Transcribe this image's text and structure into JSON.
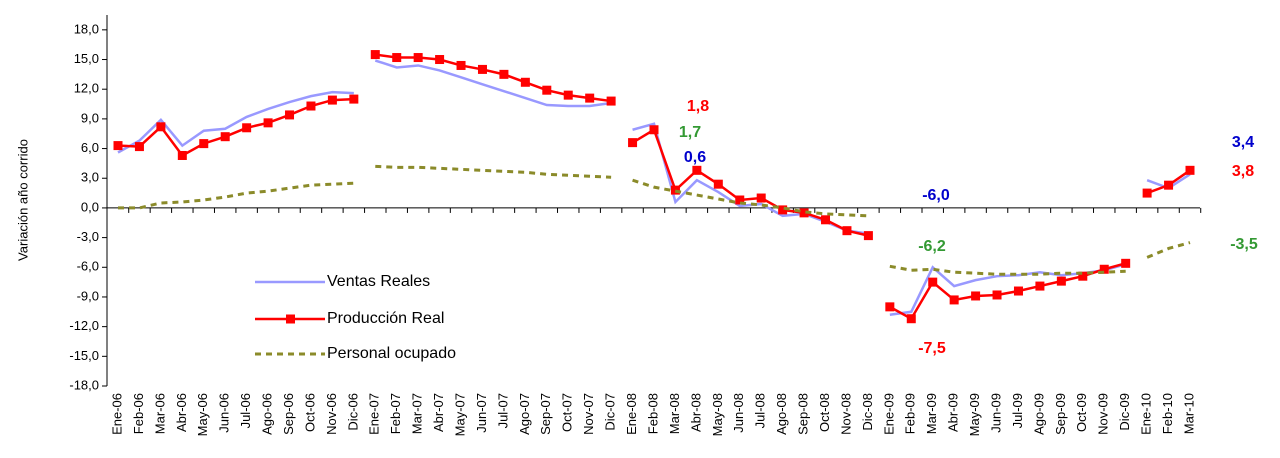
{
  "chart_data": {
    "type": "line",
    "y_axis_label": "Variación año corrido",
    "categories": [
      "Ene-06",
      "Feb-06",
      "Mar-06",
      "Abr-06",
      "May-06",
      "Jun-06",
      "Jul-06",
      "Ago-06",
      "Sep-06",
      "Oct-06",
      "Nov-06",
      "Dic-06",
      "Ene-07",
      "Feb-07",
      "Mar-07",
      "Abr-07",
      "May-07",
      "Jun-07",
      "Jul-07",
      "Ago-07",
      "Sep-07",
      "Oct-07",
      "Nov-07",
      "Dic-07",
      "Ene-08",
      "Feb-08",
      "Mar-08",
      "Abr-08",
      "May-08",
      "Jun-08",
      "Jul-08",
      "Ago-08",
      "Sep-08",
      "Oct-08",
      "Nov-08",
      "Dic-08",
      "Ene-09",
      "Feb-09",
      "Mar-09",
      "Abr-09",
      "May-09",
      "Jun-09",
      "Jul-09",
      "Ago-09",
      "Sep-09",
      "Oct-09",
      "Nov-09",
      "Dic-09",
      "Ene-10",
      "Feb-10",
      "Mar-10"
    ],
    "series": [
      {
        "name": "Ventas Reales",
        "color": "#9999ff",
        "style": "solid",
        "values": [
          5.6,
          6.8,
          8.9,
          6.3,
          7.8,
          8.0,
          9.2,
          10.0,
          10.7,
          11.3,
          11.7,
          11.6,
          14.9,
          14.2,
          14.4,
          13.9,
          13.2,
          12.5,
          11.8,
          11.1,
          10.4,
          10.3,
          10.3,
          10.6,
          7.9,
          8.5,
          0.6,
          2.8,
          1.6,
          0.2,
          0.4,
          -0.8,
          -0.6,
          -1.4,
          -2.3,
          -2.6,
          -10.8,
          -10.5,
          -6.0,
          -7.9,
          -7.3,
          -6.9,
          -6.8,
          -6.5,
          -6.8,
          -6.6,
          -6.3,
          -5.7,
          2.8,
          2.0,
          3.4
        ]
      },
      {
        "name": "Producción Real",
        "color": "#ff0000",
        "style": "solid",
        "marker": "square",
        "values": [
          6.3,
          6.2,
          8.2,
          5.3,
          6.5,
          7.2,
          8.1,
          8.6,
          9.4,
          10.3,
          10.9,
          11.0,
          15.5,
          15.2,
          15.2,
          15.0,
          14.4,
          14.0,
          13.5,
          12.7,
          11.9,
          11.4,
          11.1,
          10.8,
          6.6,
          7.9,
          1.8,
          3.8,
          2.4,
          0.8,
          1.0,
          -0.2,
          -0.5,
          -1.2,
          -2.3,
          -2.8,
          -10.0,
          -11.2,
          -7.5,
          -9.3,
          -8.9,
          -8.8,
          -8.4,
          -7.9,
          -7.4,
          -6.9,
          -6.2,
          -5.6,
          1.5,
          2.3,
          3.8
        ]
      },
      {
        "name": "Personal ocupado",
        "color": "#8b8b2a",
        "style": "dashed",
        "values": [
          0.0,
          0.0,
          0.5,
          0.6,
          0.8,
          1.1,
          1.5,
          1.7,
          2.0,
          2.3,
          2.4,
          2.5,
          4.2,
          4.1,
          4.1,
          4.0,
          3.9,
          3.8,
          3.7,
          3.6,
          3.4,
          3.3,
          3.2,
          3.1,
          2.8,
          2.1,
          1.7,
          1.3,
          0.9,
          0.5,
          0.3,
          0.0,
          -0.4,
          -0.6,
          -0.7,
          -0.8,
          -5.9,
          -6.3,
          -6.2,
          -6.5,
          -6.6,
          -6.7,
          -6.7,
          -6.7,
          -6.6,
          -6.6,
          -6.5,
          -6.4,
          -5.0,
          -4.1,
          -3.5
        ]
      }
    ],
    "annotations": [
      {
        "text": "1,8",
        "color": "#ff0000"
      },
      {
        "text": "1,7",
        "color": "#339933"
      },
      {
        "text": "0,6",
        "color": "#0000cc"
      },
      {
        "text": "-6,0",
        "color": "#0000cc"
      },
      {
        "text": "-6,2",
        "color": "#339933"
      },
      {
        "text": "-7,5",
        "color": "#ff0000"
      },
      {
        "text": "3,4",
        "color": "#0000cc"
      },
      {
        "text": "3,8",
        "color": "#ff0000"
      },
      {
        "text": "-3,5",
        "color": "#339933"
      }
    ],
    "ylim": [
      -18,
      19.5
    ],
    "yticks": [
      {
        "value": -18,
        "label": "-18,0"
      },
      {
        "value": -15,
        "label": "-15,0"
      },
      {
        "value": -12,
        "label": "-12,0"
      },
      {
        "value": -9,
        "label": "-9,0"
      },
      {
        "value": -6,
        "label": "-6,0"
      },
      {
        "value": -3,
        "label": "-3,0"
      },
      {
        "value": 0,
        "label": "0,0"
      },
      {
        "value": 3,
        "label": "3,0"
      },
      {
        "value": 6,
        "label": "6,0"
      },
      {
        "value": 9,
        "label": "9,0"
      },
      {
        "value": 12,
        "label": "12,0"
      },
      {
        "value": 15,
        "label": "15,0"
      },
      {
        "value": 18,
        "label": "18,0"
      }
    ],
    "legend": "inside-lower-left"
  }
}
